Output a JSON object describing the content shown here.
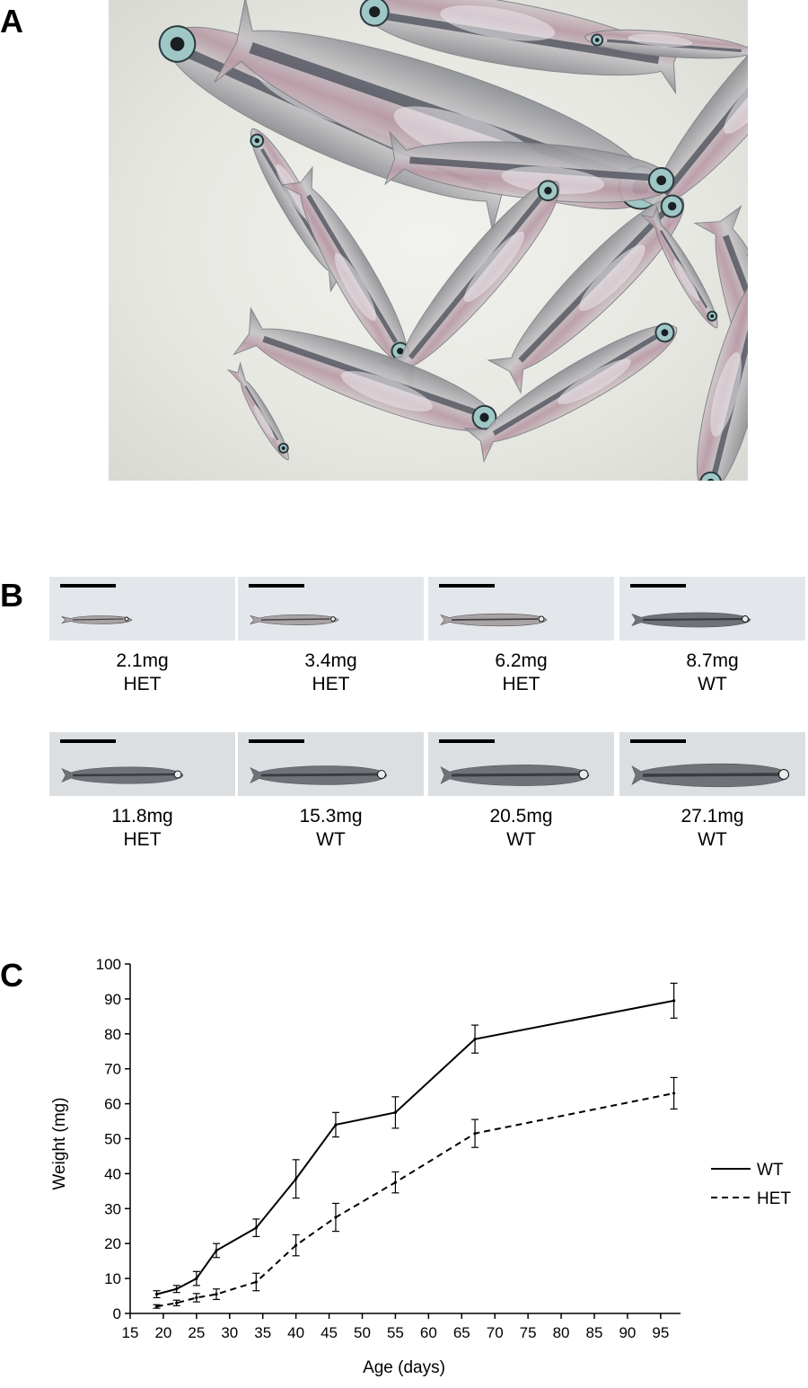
{
  "panels": {
    "a": {
      "letter": "A"
    },
    "b": {
      "letter": "B",
      "fish": [
        {
          "weight": "2.1mg",
          "genotype": "HET"
        },
        {
          "weight": "3.4mg",
          "genotype": "HET"
        },
        {
          "weight": "6.2mg",
          "genotype": "HET"
        },
        {
          "weight": "8.7mg",
          "genotype": "WT"
        },
        {
          "weight": "11.8mg",
          "genotype": "HET"
        },
        {
          "weight": "15.3mg",
          "genotype": "WT"
        },
        {
          "weight": "20.5mg",
          "genotype": "WT"
        },
        {
          "weight": "27.1mg",
          "genotype": "WT"
        }
      ]
    },
    "c": {
      "letter": "C"
    }
  },
  "chart_data": {
    "type": "line",
    "title": "",
    "xlabel": "Age (days)",
    "ylabel": "Weight (mg)",
    "xlim": [
      15,
      98
    ],
    "ylim": [
      0,
      100
    ],
    "xticks": [
      15,
      20,
      25,
      30,
      35,
      40,
      45,
      50,
      55,
      60,
      65,
      70,
      75,
      80,
      85,
      90,
      95
    ],
    "yticks": [
      0,
      10,
      20,
      30,
      40,
      50,
      60,
      70,
      80,
      90,
      100
    ],
    "grid": false,
    "legend": "right",
    "series": [
      {
        "name": "WT",
        "style": "solid",
        "x": [
          19,
          22,
          25,
          28,
          34,
          40,
          46,
          55,
          67,
          97
        ],
        "y": [
          5.5,
          7,
          10,
          18,
          24.5,
          38.5,
          54,
          57.5,
          78.5,
          89.5
        ],
        "err": [
          1,
          1,
          2,
          2,
          2.5,
          5.5,
          3.5,
          4.5,
          4,
          5
        ]
      },
      {
        "name": "HET",
        "style": "dashed",
        "x": [
          19,
          22,
          25,
          28,
          34,
          40,
          46,
          55,
          67,
          97
        ],
        "y": [
          2,
          3,
          4.5,
          5.5,
          9,
          19.5,
          27.5,
          37.5,
          51.5,
          63
        ],
        "err": [
          0.5,
          0.8,
          1.2,
          1.5,
          2.5,
          3,
          4,
          3,
          4,
          4.5
        ]
      }
    ]
  },
  "colors": {
    "line": "#000000",
    "tank_bg": "#e7e8e2",
    "thumb_bg": "#dfe2e6"
  }
}
